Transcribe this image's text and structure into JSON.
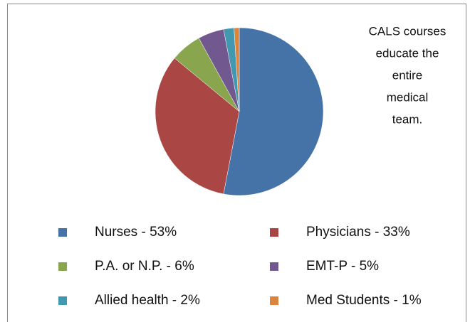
{
  "chart_data": {
    "type": "pie",
    "categories": [
      "Nurses - 53%",
      "Physicians - 33%",
      "P.A. or N.P. - 6%",
      "EMT-P - 5%",
      "Allied health - 2%",
      "Med Students - 1%"
    ],
    "values": [
      53,
      33,
      6,
      5,
      2,
      1
    ],
    "colors": [
      "#4572a7",
      "#aa4643",
      "#89a54e",
      "#71588f",
      "#4198af",
      "#db843d"
    ],
    "annotation": [
      "CALS courses",
      "educate the",
      "entire",
      "medical",
      "team."
    ],
    "legend": "bottom"
  }
}
